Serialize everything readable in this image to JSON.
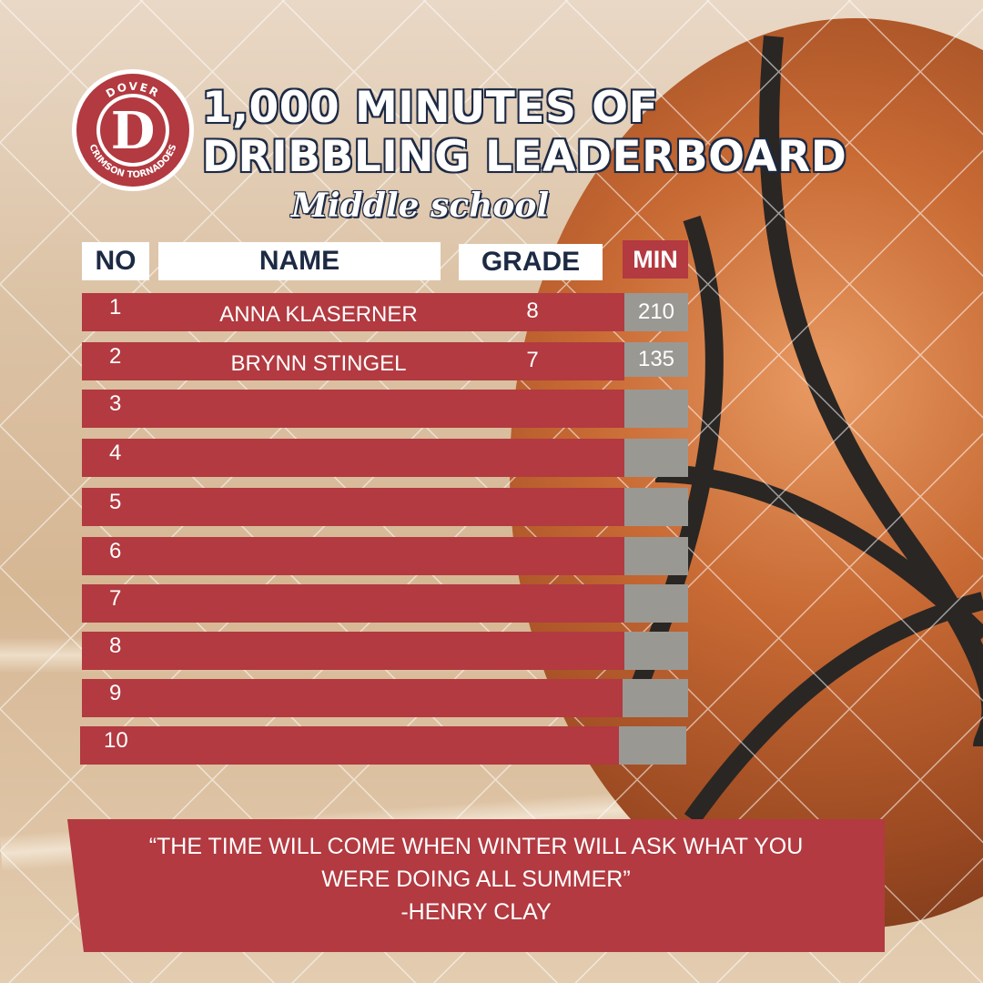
{
  "header": {
    "logo": {
      "top_text": "DOVER",
      "bottom_text": "CRIMSON TORNADOES",
      "letter": "D"
    },
    "title_line1": "1,000 MINUTES OF",
    "title_line2": "DRIBBLING LEADERBOARD",
    "subtitle": "Middle school"
  },
  "table": {
    "columns": {
      "no": "NO",
      "name": "NAME",
      "grade": "GRADE",
      "min": "MIN"
    },
    "rows": [
      {
        "no": "1",
        "name": "ANNA KLASERNER",
        "grade": "8",
        "min": "210"
      },
      {
        "no": "2",
        "name": "BRYNN STINGEL",
        "grade": "7",
        "min": "135"
      },
      {
        "no": "3",
        "name": "",
        "grade": "",
        "min": ""
      },
      {
        "no": "4",
        "name": "",
        "grade": "",
        "min": ""
      },
      {
        "no": "5",
        "name": "",
        "grade": "",
        "min": ""
      },
      {
        "no": "6",
        "name": "",
        "grade": "",
        "min": ""
      },
      {
        "no": "7",
        "name": "",
        "grade": "",
        "min": ""
      },
      {
        "no": "8",
        "name": "",
        "grade": "",
        "min": ""
      },
      {
        "no": "9",
        "name": "",
        "grade": "",
        "min": ""
      },
      {
        "no": "10",
        "name": "",
        "grade": "",
        "min": ""
      }
    ]
  },
  "quote": {
    "line1": "“THE TIME WILL COME WHEN WINTER WILL ASK WHAT YOU",
    "line2": "WERE DOING ALL SUMMER”",
    "author": "-HENRY CLAY"
  },
  "colors": {
    "crimson": "#b23a40",
    "navy": "#1d2a44",
    "gray": "#9a9893",
    "white": "#ffffff"
  }
}
